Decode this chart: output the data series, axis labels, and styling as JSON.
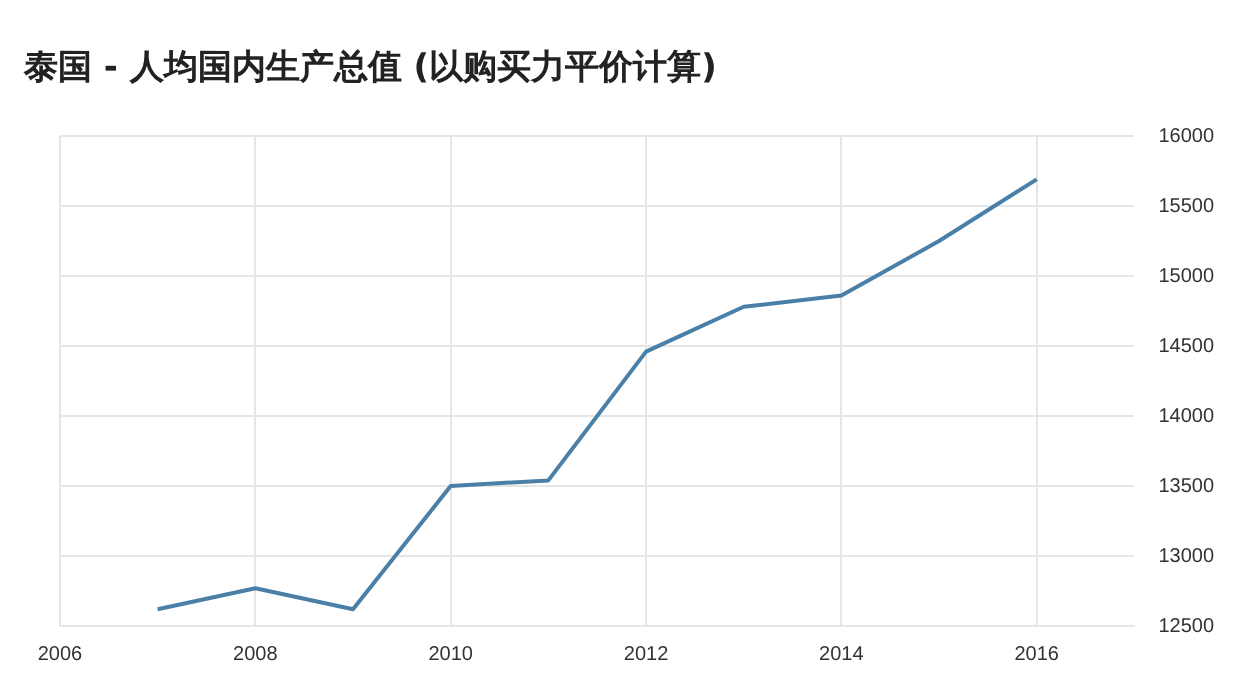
{
  "chart_data": {
    "type": "line",
    "title": "泰国 - 人均国内生产总值 (以购买力平价计算)",
    "x": [
      2007,
      2008,
      2009,
      2010,
      2011,
      2012,
      2013,
      2014,
      2015,
      2016
    ],
    "series": [
      {
        "color": "#4a7fa8",
        "values": [
          12620,
          12770,
          12620,
          13500,
          13540,
          14460,
          14780,
          14860,
          15250,
          15690
        ]
      }
    ],
    "xlim": [
      2006,
      2017
    ],
    "xticks": [
      2006,
      2008,
      2010,
      2012,
      2014,
      2016
    ],
    "ylim": [
      12500,
      16000
    ],
    "yticks": [
      12500,
      13000,
      13500,
      14000,
      14500,
      15000,
      15500,
      16000
    ],
    "grid": true,
    "legend": false,
    "marker": "none",
    "line_style": "solid"
  }
}
